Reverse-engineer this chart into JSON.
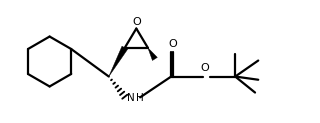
{
  "bg_color": "#ffffff",
  "line_color": "#000000",
  "line_width": 1.6,
  "fig_width": 3.2,
  "fig_height": 1.23,
  "dpi": 100,
  "xlim": [
    0,
    10.0
  ],
  "ylim": [
    0,
    3.84
  ]
}
